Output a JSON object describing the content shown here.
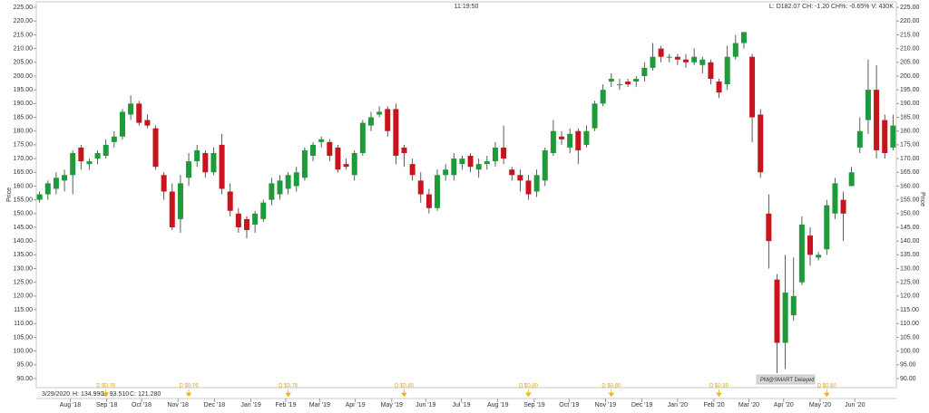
{
  "chart_data": {
    "type": "candlestick",
    "ylabel": "Price",
    "time": "11:19:50",
    "quote_info": "L: D182.07 CH: -1.20 CH%: -0.65% V: 430K",
    "cursor_date": "3/29/2020",
    "cursor_hlc": [
      "H: 134.990",
      "L: 93.510",
      "C: 121.280"
    ],
    "status": "PM@SMART Delayed",
    "up_color": "#1f9a3a",
    "down_color": "#c8141c",
    "xlim": [
      -0.4,
      103.4
    ],
    "ylim": [
      86.7,
      227
    ],
    "xticks": [
      {
        "value": 3.7,
        "label": "Aug '18"
      },
      {
        "value": 8.1,
        "label": "Sep '18"
      },
      {
        "value": 12.3,
        "label": "Oct '18"
      },
      {
        "value": 16.7,
        "label": "Nov '18"
      },
      {
        "value": 21.1,
        "label": "Dec '18"
      },
      {
        "value": 25.5,
        "label": "Jan '19"
      },
      {
        "value": 29.7,
        "label": "Feb '19"
      },
      {
        "value": 33.8,
        "label": "Mar '19"
      },
      {
        "value": 38.1,
        "label": "Apr '19"
      },
      {
        "value": 42.5,
        "label": "May '19"
      },
      {
        "value": 46.6,
        "label": "Jun '19"
      },
      {
        "value": 50.9,
        "label": "Jul '19"
      },
      {
        "value": 55.3,
        "label": "Aug '19"
      },
      {
        "value": 59.7,
        "label": "Sep '19"
      },
      {
        "value": 63.9,
        "label": "Oct '19"
      },
      {
        "value": 68.3,
        "label": "Nov '19"
      },
      {
        "value": 72.7,
        "label": "Dec '19"
      },
      {
        "value": 77,
        "label": "Jan '20"
      },
      {
        "value": 81.4,
        "label": "Feb '20"
      },
      {
        "value": 85.6,
        "label": "Mar '20"
      },
      {
        "value": 89.8,
        "label": "Apr '20"
      },
      {
        "value": 94.2,
        "label": "May '20"
      },
      {
        "value": 98.4,
        "label": "Jun '20"
      }
    ],
    "yticks": [
      {
        "value": 90,
        "label": "90.00"
      },
      {
        "value": 95,
        "label": "95.00"
      },
      {
        "value": 100,
        "label": "100.00"
      },
      {
        "value": 105,
        "label": "105.00"
      },
      {
        "value": 110,
        "label": "110.00"
      },
      {
        "value": 115,
        "label": "115.00"
      },
      {
        "value": 120,
        "label": "120.00"
      },
      {
        "value": 125,
        "label": "125.00"
      },
      {
        "value": 130,
        "label": "130.00"
      },
      {
        "value": 135,
        "label": "135.00"
      },
      {
        "value": 140,
        "label": "140.00"
      },
      {
        "value": 145,
        "label": "145.00"
      },
      {
        "value": 150,
        "label": "150.00"
      },
      {
        "value": 155,
        "label": "155.00"
      },
      {
        "value": 160,
        "label": "160.00"
      },
      {
        "value": 165,
        "label": "165.00"
      },
      {
        "value": 170,
        "label": "170.00"
      },
      {
        "value": 175,
        "label": "175.00"
      },
      {
        "value": 180,
        "label": "180.00"
      },
      {
        "value": 185,
        "label": "185.00"
      },
      {
        "value": 190,
        "label": "190.00"
      },
      {
        "value": 195,
        "label": "195.00"
      },
      {
        "value": 200,
        "label": "200.00"
      },
      {
        "value": 205,
        "label": "205.00"
      },
      {
        "value": 210,
        "label": "210.00"
      },
      {
        "value": 215,
        "label": "215.00"
      },
      {
        "value": 220,
        "label": "220.00"
      },
      {
        "value": 225,
        "label": "225.00"
      }
    ],
    "dividends": [
      {
        "x": 8,
        "label": "D $0.76"
      },
      {
        "x": 18,
        "label": "D $0.76"
      },
      {
        "x": 30,
        "label": "D $0.76"
      },
      {
        "x": 44,
        "label": "D $0.80"
      },
      {
        "x": 59,
        "label": "D $0.80"
      },
      {
        "x": 69,
        "label": "D $0.80"
      },
      {
        "x": 82,
        "label": "D $0.80"
      },
      {
        "x": 95,
        "label": "D $0.80"
      }
    ],
    "x": [
      0,
      1,
      2,
      3,
      4,
      5,
      6,
      7,
      8,
      9,
      10,
      11,
      12,
      13,
      14,
      15,
      16,
      17,
      18,
      19,
      20,
      21,
      22,
      23,
      24,
      25,
      26,
      27,
      28,
      29,
      30,
      31,
      32,
      33,
      34,
      35,
      36,
      37,
      38,
      39,
      40,
      41,
      42,
      43,
      44,
      45,
      46,
      47,
      48,
      49,
      50,
      51,
      52,
      53,
      54,
      55,
      56,
      57,
      58,
      59,
      60,
      61,
      62,
      63,
      64,
      65,
      66,
      67,
      68,
      69,
      70,
      71,
      72,
      73,
      74,
      75,
      76,
      77,
      78,
      79,
      80,
      81,
      82,
      83,
      84,
      85,
      86,
      87,
      88,
      89,
      90,
      91,
      92,
      93,
      94,
      95,
      96,
      97,
      98,
      99,
      100,
      101,
      102,
      103
    ],
    "open": [
      155,
      157,
      159,
      162,
      164,
      174,
      168,
      170,
      171,
      176,
      178,
      186,
      190,
      184,
      181,
      164,
      158,
      148,
      163,
      169,
      172,
      165,
      175,
      158,
      150,
      148,
      146,
      148,
      155,
      157,
      159,
      160,
      163,
      171,
      176,
      176,
      174,
      168,
      164,
      172,
      182,
      186,
      188,
      188,
      174,
      168,
      162,
      157,
      152,
      164,
      164,
      168,
      171,
      166,
      168,
      169,
      174,
      166,
      164,
      162,
      158,
      162,
      172,
      178,
      174,
      180,
      175,
      181,
      190,
      198,
      197,
      198,
      198,
      200,
      203,
      210,
      207,
      207,
      206,
      205,
      204,
      205,
      198,
      197,
      207,
      212,
      207,
      186,
      150,
      126,
      103,
      113,
      125,
      142,
      134,
      137,
      150,
      155,
      160,
      174,
      184,
      195,
      184,
      174
    ],
    "high": [
      158,
      162,
      165,
      166,
      173,
      175,
      170,
      173,
      177,
      180,
      188,
      193,
      191,
      186,
      182,
      165,
      161,
      164,
      172,
      175,
      173,
      174,
      179,
      161,
      152,
      149,
      151,
      155,
      163,
      164,
      165,
      167,
      174,
      176,
      178,
      177,
      175,
      170,
      173,
      184,
      187,
      189,
      189,
      190,
      175,
      170,
      165,
      159,
      166,
      168,
      172,
      171,
      172,
      170,
      171,
      176,
      182,
      167,
      166,
      164,
      166,
      174,
      184,
      180,
      181,
      181,
      182,
      191,
      197,
      201,
      199,
      199,
      200,
      205,
      212,
      211,
      208,
      208,
      208,
      210,
      207,
      206,
      199,
      211,
      215,
      216,
      208,
      188,
      157,
      128,
      134.99,
      134,
      149,
      145,
      136,
      155,
      163,
      158,
      167,
      185,
      206,
      204,
      186,
      186
    ],
    "low": [
      154,
      155,
      157,
      158,
      157,
      166,
      166,
      168,
      170,
      174,
      177,
      184,
      182,
      181,
      166,
      155,
      144,
      143,
      160,
      167,
      163,
      164,
      157,
      149,
      143,
      141,
      143,
      147,
      153,
      155,
      157,
      158,
      162,
      169,
      174,
      169,
      165,
      166,
      162,
      171,
      180,
      185,
      178,
      168,
      167,
      162,
      154,
      150,
      151,
      162,
      162,
      166,
      165,
      163,
      166,
      167,
      168,
      162,
      158,
      155,
      156,
      160,
      171,
      175,
      172,
      168,
      174,
      180,
      189,
      196,
      195,
      196,
      196,
      198,
      202,
      205,
      205,
      204,
      203,
      204,
      201,
      197,
      192,
      195,
      206,
      210,
      176,
      163,
      130,
      92,
      93.51,
      111,
      124,
      131,
      133,
      135,
      148,
      140,
      160,
      172,
      179,
      170,
      170,
      173
    ],
    "close": [
      157,
      161,
      163,
      164,
      172,
      169,
      169,
      172,
      175,
      178,
      187,
      190,
      183,
      182,
      167,
      158,
      145,
      161,
      169,
      173,
      165,
      172,
      159,
      151,
      145,
      144,
      150,
      154,
      161,
      162,
      164,
      165,
      173,
      175,
      177,
      171,
      166,
      167,
      172,
      183,
      185,
      187,
      180,
      171,
      172,
      164,
      157,
      152,
      164,
      166,
      170,
      170,
      167,
      168,
      169,
      174,
      170,
      164,
      162,
      157,
      164,
      173,
      180,
      177,
      179,
      173,
      180,
      190,
      195,
      199,
      197,
      197,
      199,
      203,
      207,
      207,
      207,
      206,
      205,
      207,
      206,
      199,
      194,
      207,
      212,
      216,
      185,
      165,
      140,
      103,
      121.28,
      120,
      146,
      135,
      135,
      153,
      161,
      150,
      165,
      180,
      195,
      173,
      172,
      182
    ]
  }
}
